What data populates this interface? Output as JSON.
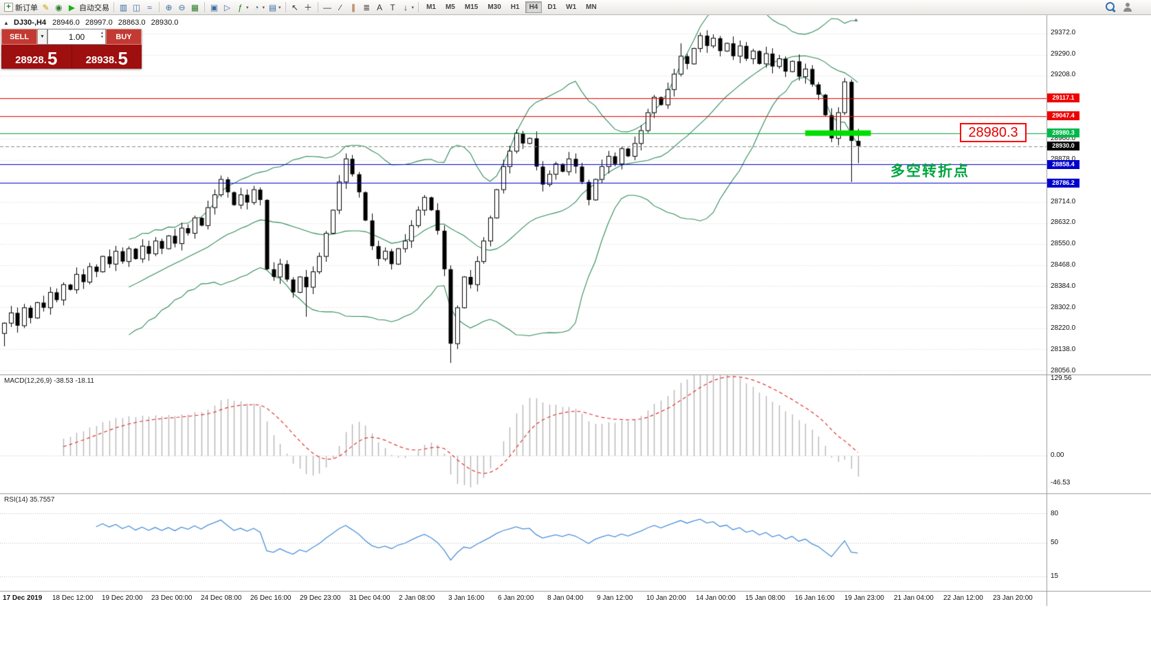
{
  "icons": {
    "collapse_glyph": "▲",
    "dropdown_glyph": "▼",
    "spin_up_glyph": "▲",
    "spin_down_glyph": "▼",
    "shift_marker_glyph": "▲",
    "toolbar_dropdown_glyph": "▾"
  },
  "toolbar": {
    "items": [
      {
        "name": "new-order-button",
        "glyph": "+",
        "color": "#1a7f1a",
        "label": "新订单",
        "boxed": true
      },
      {
        "name": "metaeditor-icon",
        "glyph": "✎",
        "color": "#c99a00"
      },
      {
        "name": "marketwatch-icon",
        "glyph": "◉",
        "color": "#2e7d32"
      },
      {
        "name": "autotrade-button",
        "glyph": "▶",
        "color": "#19b219",
        "label": "自动交易"
      },
      {
        "sep": true
      },
      {
        "name": "bar-chart-icon",
        "glyph": "▥",
        "color": "#3b6ea5"
      },
      {
        "name": "candlestick-chart-icon",
        "glyph": "◫",
        "color": "#3b6ea5"
      },
      {
        "name": "line-chart-icon",
        "glyph": "≈",
        "color": "#3b6ea5"
      },
      {
        "sep": true
      },
      {
        "name": "zoom-in-icon",
        "glyph": "⊕",
        "color": "#3b6ea5"
      },
      {
        "name": "zoom-out-icon",
        "glyph": "⊖",
        "color": "#3b6ea5"
      },
      {
        "name": "tile-windows-icon",
        "glyph": "▦",
        "color": "#2e7d32"
      },
      {
        "sep": true
      },
      {
        "name": "auto-arrange-icon",
        "glyph": "▣",
        "color": "#3b6ea5"
      },
      {
        "name": "chart-shift-icon",
        "glyph": "▷",
        "color": "#3b6ea5"
      },
      {
        "name": "indicators-icon",
        "glyph": "ƒ",
        "color": "#1a7f1a",
        "dd": true
      },
      {
        "name": "periods-icon",
        "glyph": "◔",
        "color": "#3b6ea5",
        "dd": true
      },
      {
        "name": "templates-icon",
        "glyph": "▤",
        "color": "#3b6ea5",
        "dd": true
      },
      {
        "sep": true
      },
      {
        "name": "cursor-icon",
        "glyph": "↖",
        "color": "#333333"
      },
      {
        "name": "crosshair-icon",
        "glyph": "＋",
        "color": "#333333"
      },
      {
        "sep": true
      },
      {
        "name": "horizontal-line-icon",
        "glyph": "—",
        "color": "#333333"
      },
      {
        "name": "trendline-icon",
        "glyph": "∕",
        "color": "#333333"
      },
      {
        "name": "equidistant-channel-icon",
        "glyph": "∥",
        "color": "#8b4513"
      },
      {
        "name": "fibonacci-icon",
        "glyph": "≣",
        "color": "#333333"
      },
      {
        "name": "text-icon",
        "glyph": "A",
        "color": "#333333"
      },
      {
        "name": "text-label-icon",
        "glyph": "T",
        "color": "#333333"
      },
      {
        "name": "arrows-icon",
        "glyph": "↓",
        "color": "#333333",
        "dd": true
      },
      {
        "sep": true
      }
    ],
    "timeframes": [
      "M1",
      "M5",
      "M15",
      "M30",
      "H1",
      "H4",
      "D1",
      "W1",
      "MN"
    ],
    "active_timeframe": "H4"
  },
  "symbol_header": {
    "symbol": "DJ30-,H4",
    "open": "28946.0",
    "high": "28997.0",
    "low": "28863.0",
    "close": "28930.0"
  },
  "trade_panel": {
    "sell_label": "SELL",
    "buy_label": "BUY",
    "volume": "1.00",
    "sell_price_main": "28928.",
    "sell_price_frac": "5",
    "buy_price_main": "28938.",
    "buy_price_frac": "5"
  },
  "annotations": {
    "price_callout": "28980.3",
    "turning_point": "多空转折点"
  },
  "macd_panel": {
    "label": "MACD(12,26,9) -38.53 -18.11",
    "scale_labels": [
      {
        "value": 129.56,
        "text": "129.56"
      },
      {
        "value": 0,
        "text": "0.00"
      },
      {
        "value": -46.53,
        "text": "-46.53"
      }
    ]
  },
  "rsi_panel": {
    "label": "RSI(14) 35.7557",
    "levels": [
      {
        "value": 80,
        "text": "80"
      },
      {
        "value": 50,
        "text": "50"
      },
      {
        "value": 15,
        "text": "15"
      }
    ]
  },
  "chart_data": {
    "type": "candlestick",
    "symbol": "DJ30-",
    "timeframe": "H4",
    "scales": {
      "main_max": 29440,
      "main_min": 28040,
      "macd_max": 135,
      "macd_min": -64,
      "rsi_max": 100,
      "rsi_min": 0
    },
    "closes": [
      28240,
      28280,
      28230,
      28300,
      28260,
      28320,
      28300,
      28360,
      28330,
      28390,
      28370,
      28430,
      28400,
      28460,
      28440,
      28500,
      28470,
      28520,
      28480,
      28530,
      28490,
      28540,
      28510,
      28560,
      28530,
      28580,
      28550,
      28610,
      28590,
      28650,
      28620,
      28690,
      28740,
      28800,
      28750,
      28700,
      28740,
      28710,
      28760,
      28720,
      28450,
      28420,
      28470,
      28410,
      28360,
      28420,
      28380,
      28440,
      28500,
      28590,
      28680,
      28790,
      28880,
      28820,
      28750,
      28640,
      28540,
      28490,
      28520,
      28470,
      28530,
      28560,
      28620,
      28680,
      28730,
      28680,
      28600,
      28450,
      28160,
      28300,
      28420,
      28390,
      28480,
      28560,
      28650,
      28760,
      28850,
      28910,
      28980,
      28940,
      28960,
      28850,
      28780,
      28820,
      28860,
      28830,
      28880,
      28850,
      28790,
      28720,
      28800,
      28850,
      28890,
      28860,
      28920,
      28890,
      28940,
      28990,
      29060,
      29120,
      29090,
      29150,
      29210,
      29280,
      29250,
      29310,
      29360,
      29320,
      29350,
      29300,
      29330,
      29280,
      29320,
      29270,
      29300,
      29250,
      29290,
      29240,
      29270,
      29220,
      29260,
      29200,
      29230,
      29170,
      29130,
      29050,
      28960,
      29060,
      29180,
      28950,
      28930
    ],
    "wick_overrides": [
      {
        "i": 0,
        "low": 28150
      },
      {
        "i": 46,
        "low": 28265
      },
      {
        "i": 68,
        "low": 28085
      },
      {
        "i": 103,
        "high": 29330
      },
      {
        "i": 106,
        "high": 29372
      },
      {
        "i": 129,
        "low": 28790
      },
      {
        "i": 130,
        "high": 28997,
        "low": 28863
      }
    ],
    "indicators": {
      "bollinger": {
        "period": 20,
        "deviation": 2
      },
      "macd": {
        "fast": 12,
        "slow": 26,
        "signal": 9
      },
      "rsi": {
        "period": 14
      }
    },
    "price_lines": [
      {
        "price": 29117.1,
        "text": "29117.1",
        "color": "#ee0000",
        "tag": "#ee0000"
      },
      {
        "price": 29047.4,
        "text": "29047.4",
        "color": "#ee0000",
        "tag": "#ee0000"
      },
      {
        "price": 28980.3,
        "text": "28980.3",
        "color": "#00a636",
        "tag": "#00b84a"
      },
      {
        "price": 28930.0,
        "text": "28930.0",
        "color": "#888888",
        "tag": "#000000",
        "dashed": true
      },
      {
        "price": 28858.4,
        "text": "28858.4",
        "color": "#0000cd",
        "tag": "#0000cd"
      },
      {
        "price": 28786.2,
        "text": "28786.2",
        "color": "#0000cd",
        "tag": "#0000cd"
      }
    ],
    "highlight": {
      "price": 28980.3,
      "from_index": 122,
      "to_index": 132,
      "color": "#00dd00"
    },
    "y_axis_labels": [
      "29372.0",
      "29290.0",
      "29208.0",
      "28960.0",
      "28878.0",
      "28714.0",
      "28632.0",
      "28550.0",
      "28468.0",
      "28384.0",
      "28302.0",
      "28220.0",
      "28138.0",
      "28056.0"
    ],
    "x_axis_labels": [
      "17 Dec 2019",
      "18 Dec 12:00",
      "19 Dec 20:00",
      "23 Dec 00:00",
      "24 Dec 08:00",
      "26 Dec 16:00",
      "29 Dec 23:00",
      "31 Dec 04:00",
      "2 Jan 08:00",
      "3 Jan 16:00",
      "6 Jan 20:00",
      "8 Jan 04:00",
      "9 Jan 12:00",
      "10 Jan 20:00",
      "14 Jan 00:00",
      "15 Jan 08:00",
      "16 Jan 16:00",
      "19 Jan 23:00",
      "21 Jan 04:00",
      "22 Jan 12:00",
      "23 Jan 20:00"
    ]
  }
}
